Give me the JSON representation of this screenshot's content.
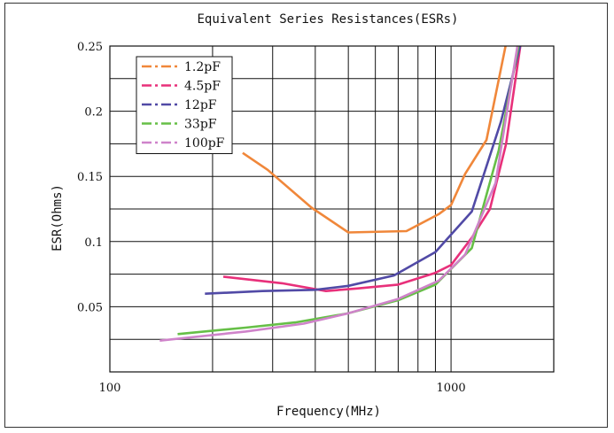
{
  "chart_data": {
    "type": "line",
    "title": "Equivalent Series Resistances(ESRs)",
    "xlabel": "Frequency(MHz)",
    "ylabel": "ESR(Ohms)",
    "x_scale": "log",
    "xlim": [
      100,
      2000
    ],
    "ylim": [
      0.0,
      0.25
    ],
    "x_ticks": [
      100,
      1000
    ],
    "x_tick_labels": [
      "100",
      "1000"
    ],
    "y_ticks": [
      0.05,
      0.1,
      0.15,
      0.2,
      0.25
    ],
    "y_tick_labels": [
      "0.05",
      "0.1",
      "0.15",
      "0.2",
      "0.25"
    ],
    "grid": true,
    "legend_position": "top-left",
    "series": [
      {
        "name": "1.2pF",
        "color": "#f0873a",
        "points": [
          [
            245,
            0.168
          ],
          [
            290,
            0.155
          ],
          [
            390,
            0.126
          ],
          [
            500,
            0.107
          ],
          [
            740,
            0.108
          ],
          [
            920,
            0.121
          ],
          [
            1000,
            0.128
          ],
          [
            1100,
            0.152
          ],
          [
            1270,
            0.178
          ],
          [
            1450,
            0.252
          ]
        ]
      },
      {
        "name": "4.5pF",
        "color": "#e8307a",
        "points": [
          [
            215,
            0.073
          ],
          [
            320,
            0.068
          ],
          [
            430,
            0.062
          ],
          [
            530,
            0.064
          ],
          [
            700,
            0.067
          ],
          [
            900,
            0.076
          ],
          [
            1000,
            0.082
          ],
          [
            1150,
            0.103
          ],
          [
            1300,
            0.125
          ],
          [
            1450,
            0.175
          ],
          [
            1600,
            0.252
          ]
        ]
      },
      {
        "name": "12pF",
        "color": "#514aa6",
        "points": [
          [
            190,
            0.06
          ],
          [
            280,
            0.062
          ],
          [
            400,
            0.063
          ],
          [
            500,
            0.066
          ],
          [
            680,
            0.074
          ],
          [
            900,
            0.092
          ],
          [
            1150,
            0.123
          ],
          [
            1400,
            0.192
          ],
          [
            1600,
            0.252
          ]
        ]
      },
      {
        "name": "33pF",
        "color": "#66bf47",
        "points": [
          [
            158,
            0.029
          ],
          [
            250,
            0.034
          ],
          [
            350,
            0.038
          ],
          [
            500,
            0.045
          ],
          [
            700,
            0.055
          ],
          [
            900,
            0.067
          ],
          [
            1150,
            0.095
          ],
          [
            1380,
            0.17
          ],
          [
            1580,
            0.252
          ]
        ]
      },
      {
        "name": "100pF",
        "color": "#cf83ca",
        "points": [
          [
            140,
            0.024
          ],
          [
            250,
            0.031
          ],
          [
            370,
            0.037
          ],
          [
            500,
            0.045
          ],
          [
            700,
            0.056
          ],
          [
            920,
            0.07
          ],
          [
            1100,
            0.09
          ],
          [
            1350,
            0.145
          ],
          [
            1570,
            0.252
          ]
        ]
      }
    ]
  }
}
